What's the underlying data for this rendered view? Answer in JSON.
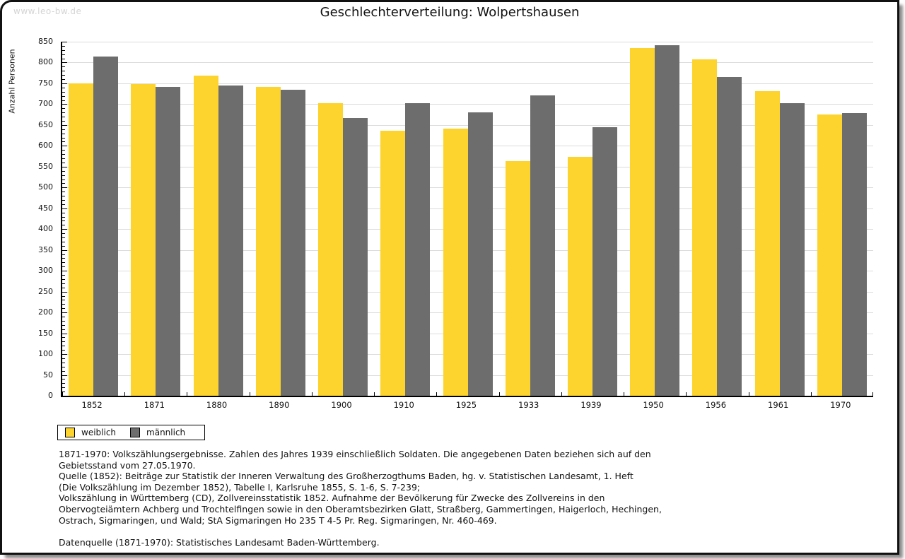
{
  "page": {
    "watermark": "www.leo-bw.de",
    "title": "Geschlechterverteilung: Wolpertshausen"
  },
  "chart_data": {
    "type": "bar",
    "title": "Geschlechterverteilung: Wolpertshausen",
    "xlabel": "",
    "ylabel": "Anzahl Personen",
    "ylim": [
      0,
      850
    ],
    "ytick_major_step": 50,
    "ytick_minor_step": 10,
    "grid": true,
    "legend_position": "bottom-left",
    "categories": [
      "1852",
      "1871",
      "1880",
      "1890",
      "1900",
      "1910",
      "1925",
      "1933",
      "1939",
      "1950",
      "1956",
      "1961",
      "1970"
    ],
    "series": [
      {
        "name": "weiblich",
        "color": "#fcd42d",
        "values": [
          750,
          749,
          769,
          742,
          703,
          636,
          641,
          563,
          573,
          835,
          807,
          731,
          675
        ]
      },
      {
        "name": "männlich",
        "color": "#6d6d6d",
        "values": [
          814,
          741,
          745,
          735,
          667,
          703,
          681,
          721,
          645,
          842,
          765,
          703,
          678
        ]
      }
    ]
  },
  "footnotes": {
    "lines": [
      "1871-1970: Volkszählungsergebnisse. Zahlen des Jahres 1939 einschließlich Soldaten. Die angegebenen Daten beziehen sich auf den",
      "Gebietsstand vom 27.05.1970.",
      "Quelle (1852): Beiträge zur Statistik der Inneren Verwaltung des Großherzogthums Baden, hg. v. Statistischen Landesamt, 1. Heft",
      "(Die Volkszählung im Dezember 1852), Tabelle I, Karlsruhe 1855, S. 1-6, S. 7-239;",
      "Volkszählung in Württemberg (CD), Zollvereinsstatistik 1852. Aufnahme der Bevölkerung für Zwecke des Zollvereins in den",
      "Obervogteiämtern Achberg und Trochtelfingen sowie in den Oberamtsbezirken Glatt, Straßberg, Gammertingen, Haigerloch, Hechingen,",
      "Ostrach, Sigmaringen, und Wald; StA Sigmaringen Ho 235 T 4-5 Pr. Reg. Sigmaringen, Nr. 460-469.",
      "",
      "Datenquelle (1871-1970): Statistisches Landesamt Baden-Württemberg."
    ]
  }
}
